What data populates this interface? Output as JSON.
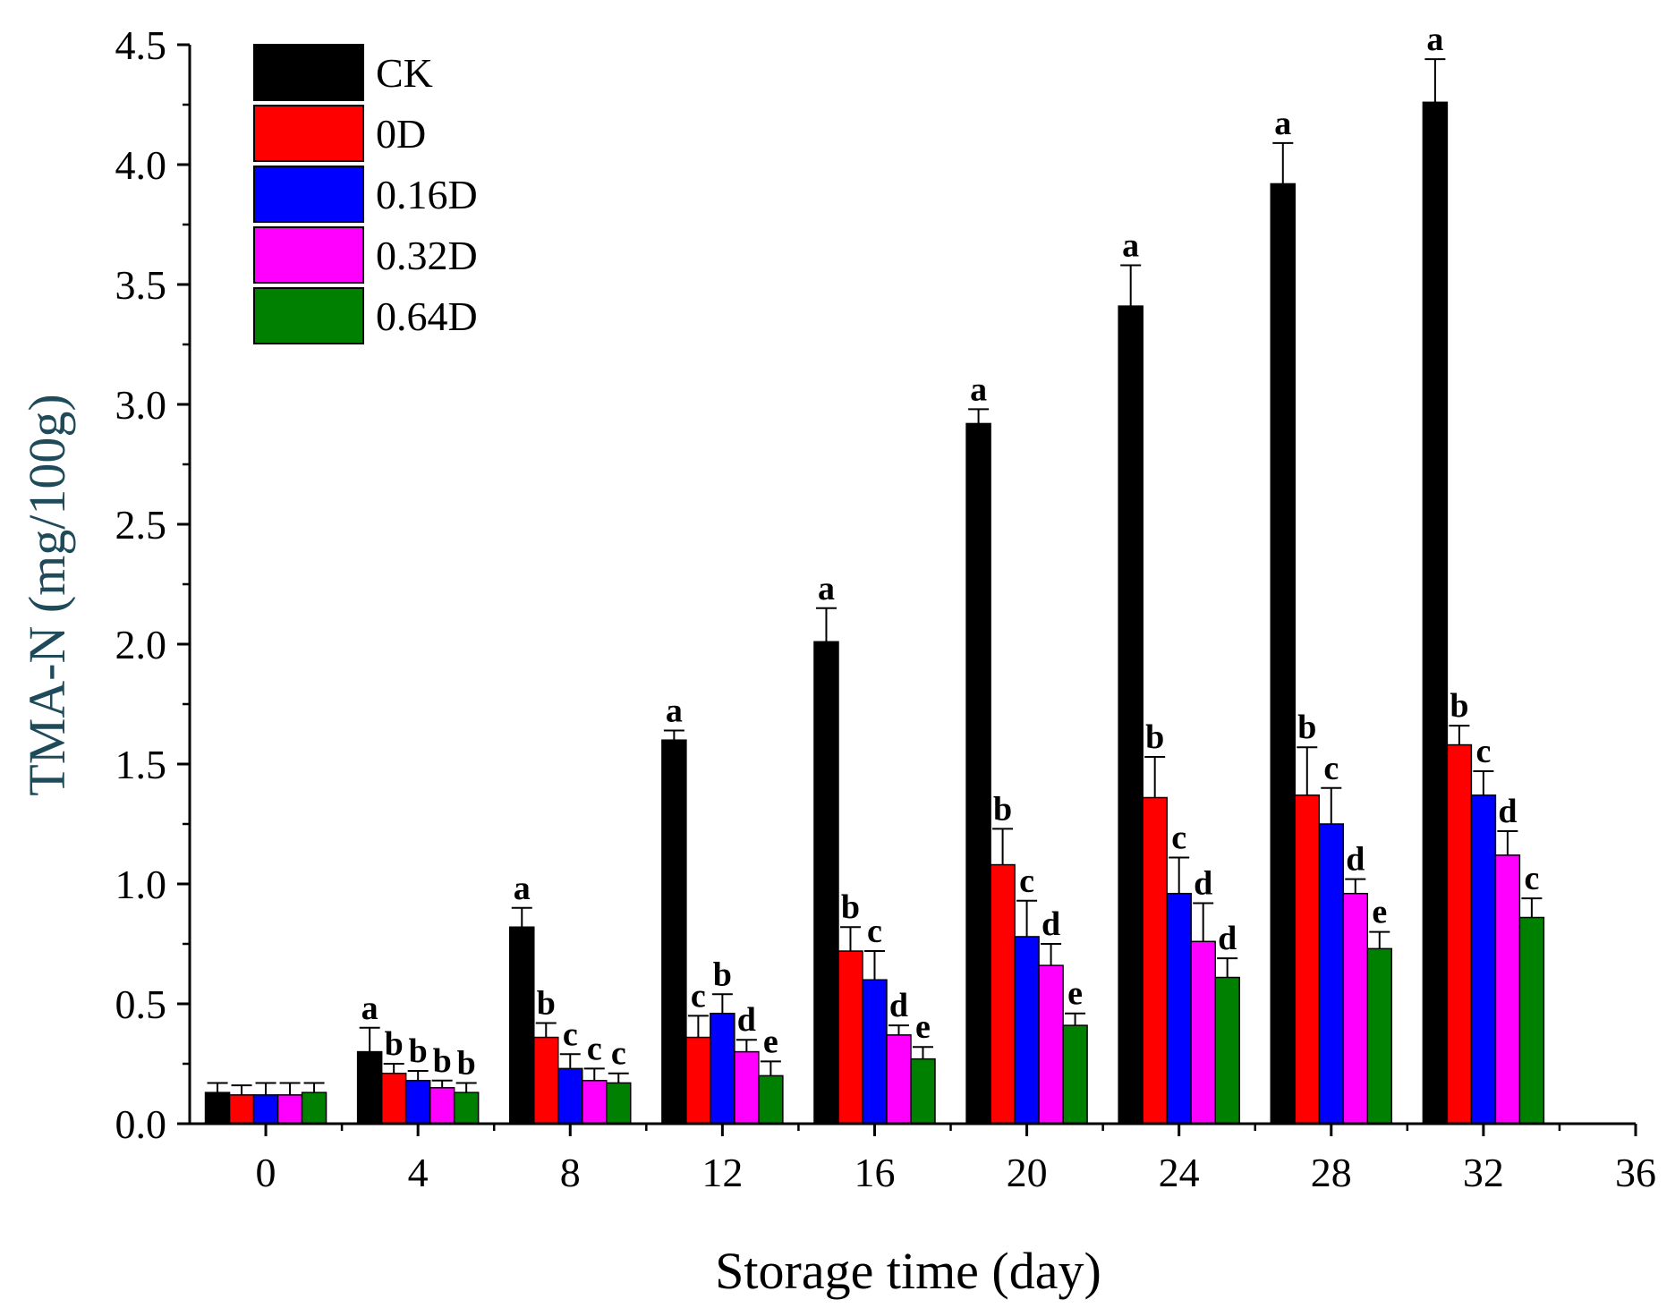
{
  "chart_data": {
    "type": "bar",
    "title": "",
    "xlabel": "Storage time (day)",
    "ylabel": "TMA-N (mg/100g)",
    "xlim": [
      -2,
      36
    ],
    "ylim": [
      0,
      4.5
    ],
    "x_ticks": [
      "0",
      "4",
      "8",
      "12",
      "16",
      "20",
      "24",
      "28",
      "32",
      "36"
    ],
    "y_ticks": [
      "0.0",
      "0.5",
      "1.0",
      "1.5",
      "2.0",
      "2.5",
      "3.0",
      "3.5",
      "4.0",
      "4.5"
    ],
    "categories": [
      0,
      4,
      8,
      12,
      16,
      20,
      24,
      28,
      32
    ],
    "legend_position": "top-left",
    "series": [
      {
        "name": "CK",
        "color": "#000000",
        "values": [
          0.13,
          0.3,
          0.82,
          1.6,
          2.01,
          2.92,
          3.41,
          3.92,
          4.26
        ],
        "errors": [
          0.04,
          0.1,
          0.08,
          0.04,
          0.14,
          0.06,
          0.17,
          0.17,
          0.18
        ],
        "labels": [
          "",
          "a",
          "a",
          "a",
          "a",
          "a",
          "a",
          "a",
          "a"
        ]
      },
      {
        "name": "0D",
        "color": "#ff0000",
        "values": [
          0.12,
          0.21,
          0.36,
          0.36,
          0.72,
          1.08,
          1.36,
          1.37,
          1.58
        ],
        "errors": [
          0.04,
          0.04,
          0.06,
          0.09,
          0.1,
          0.15,
          0.17,
          0.2,
          0.08
        ],
        "labels": [
          "",
          "b",
          "b",
          "c",
          "b",
          "b",
          "b",
          "b",
          "b"
        ]
      },
      {
        "name": "0.16D",
        "color": "#0000ff",
        "values": [
          0.12,
          0.18,
          0.23,
          0.46,
          0.6,
          0.78,
          0.96,
          1.25,
          1.37
        ],
        "errors": [
          0.05,
          0.04,
          0.06,
          0.08,
          0.12,
          0.15,
          0.15,
          0.15,
          0.1
        ],
        "labels": [
          "",
          "b",
          "c",
          "b",
          "c",
          "c",
          "c",
          "c",
          "c"
        ]
      },
      {
        "name": "0.32D",
        "color": "#ff00ff",
        "values": [
          0.12,
          0.15,
          0.18,
          0.3,
          0.37,
          0.66,
          0.76,
          0.96,
          1.12
        ],
        "errors": [
          0.05,
          0.03,
          0.05,
          0.05,
          0.04,
          0.09,
          0.16,
          0.06,
          0.1
        ],
        "labels": [
          "",
          "b",
          "c",
          "d",
          "d",
          "d",
          "d",
          "d",
          "d"
        ]
      },
      {
        "name": "0.64D",
        "color": "#008000",
        "values": [
          0.13,
          0.13,
          0.17,
          0.2,
          0.27,
          0.41,
          0.61,
          0.73,
          0.86
        ],
        "errors": [
          0.04,
          0.04,
          0.04,
          0.06,
          0.05,
          0.05,
          0.08,
          0.07,
          0.08
        ],
        "labels": [
          "",
          "b",
          "c",
          "e",
          "e",
          "e",
          "d",
          "e",
          "c"
        ]
      }
    ]
  }
}
